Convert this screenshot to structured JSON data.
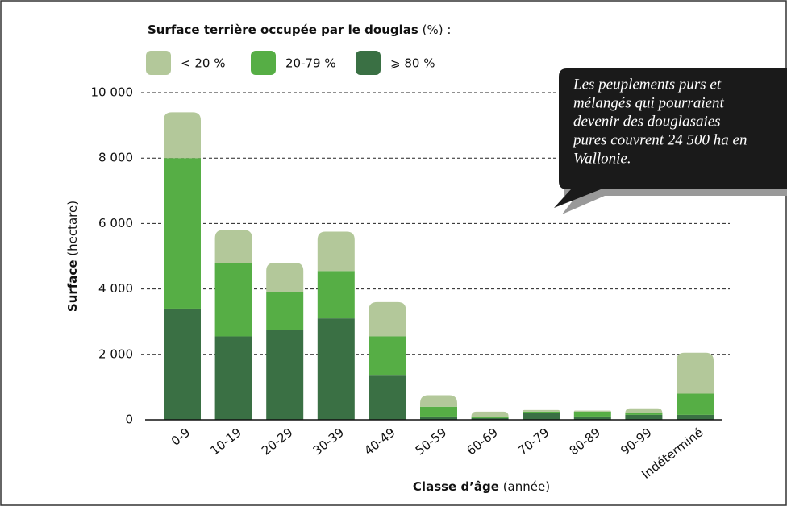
{
  "chart_data": {
    "type": "stacked_bar",
    "title": "Surface terrière occupée par le douglas",
    "title_suffix": "(%) :",
    "y_label": {
      "bold": "Surface",
      "normal": "(hectare)"
    },
    "x_label": {
      "bold": "Classe d’âge",
      "normal": "(année)"
    },
    "annotation": [
      "Les peuplements purs et",
      "mélangés qui pourraient",
      "devenir des douglasaies",
      "pures couvrent 24 500 ha en",
      "Wallonie."
    ],
    "categories": [
      "0-9",
      "10-19",
      "20-29",
      "30-39",
      "40-49",
      "50-59",
      "60-69",
      "70-79",
      "80-89",
      "90-99",
      "Indéterminé"
    ],
    "series": [
      {
        "name": "⩾ 80 %",
        "color": "#3a7044",
        "values": [
          3400,
          2550,
          2750,
          3100,
          1350,
          100,
          50,
          200,
          100,
          150,
          150
        ]
      },
      {
        "name": "20-79 %",
        "color": "#56ae45",
        "values": [
          4600,
          2250,
          1150,
          1450,
          1200,
          300,
          50,
          50,
          150,
          50,
          650
        ]
      },
      {
        "name": "< 20 %",
        "color": "#b3c89a",
        "values": [
          1400,
          1000,
          900,
          1200,
          1050,
          350,
          150,
          50,
          30,
          150,
          1250
        ]
      }
    ],
    "legend_order": [
      2,
      1,
      0
    ],
    "ylim": [
      0,
      10000
    ],
    "yticks": [
      0,
      {
        "value": 2000,
        "label": "2 000"
      },
      {
        "value": 4000,
        "label": "4 000"
      },
      {
        "value": 6000,
        "label": "6 000"
      },
      {
        "value": 8000,
        "label": "8 000"
      },
      {
        "value": 10000,
        "label": "10 000"
      }
    ],
    "grid": true
  }
}
